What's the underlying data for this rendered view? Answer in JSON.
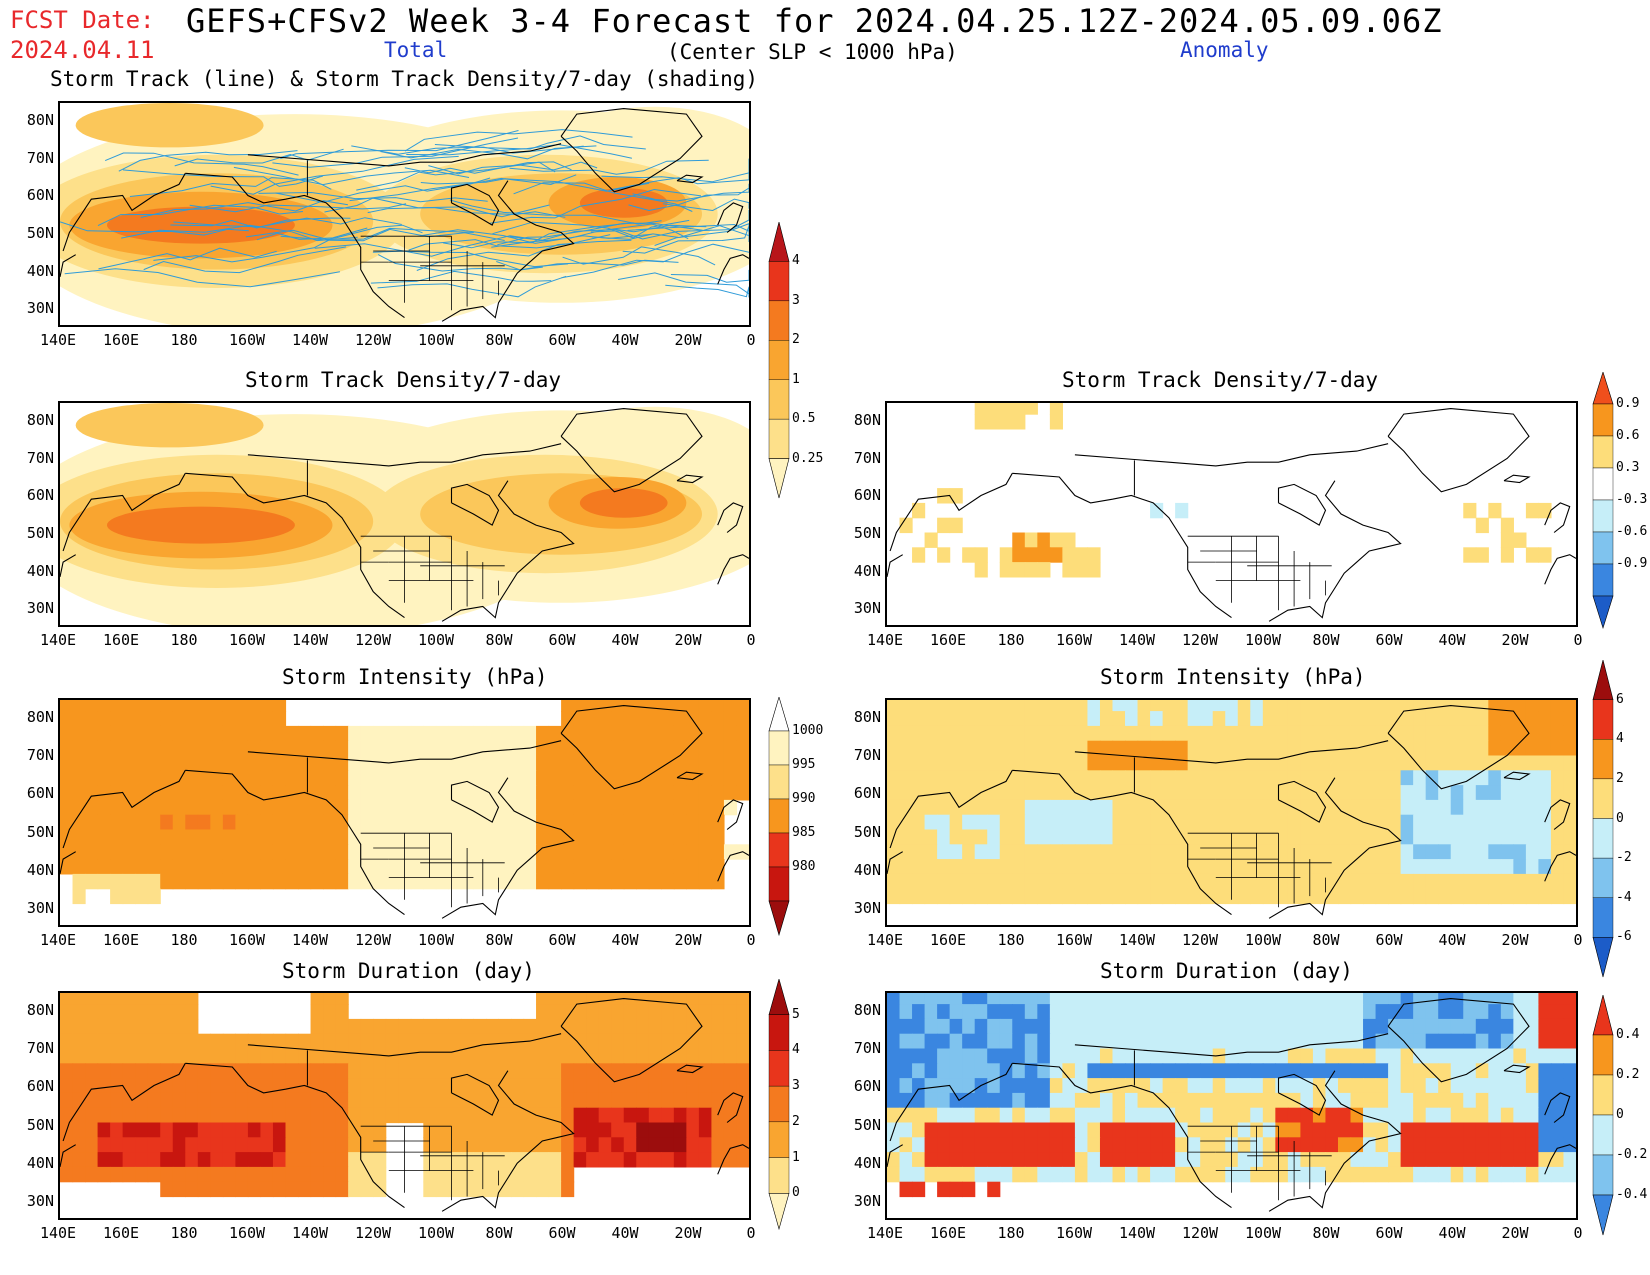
{
  "header": {
    "fcst_label": "FCST Date:",
    "fcst_date": "2024.04.11",
    "title": "GEFS+CFSv2 Week 3-4 Forecast for 2024.04.25.12Z-2024.05.09.06Z",
    "subtitle": "(Center SLP < 1000 hPa)",
    "col_total": "Total",
    "col_anomaly": "Anomaly"
  },
  "axes": {
    "lat_labels": [
      "80N",
      "70N",
      "60N",
      "50N",
      "40N",
      "30N"
    ],
    "lon_labels": [
      "140E",
      "160E",
      "180",
      "160W",
      "140W",
      "120W",
      "100W",
      "80W",
      "60W",
      "40W",
      "20W",
      "0"
    ]
  },
  "panels": [
    {
      "id": "p1",
      "title": "Storm Track (line) & Storm Track Density/7-day (shading)",
      "kind": "tracks"
    },
    {
      "id": "p2",
      "title": "Storm Track Density/7-day",
      "kind": "density_total"
    },
    {
      "id": "p3",
      "title": "Storm Track Density/7-day",
      "kind": "density_anom"
    },
    {
      "id": "p4",
      "title": "Storm Intensity (hPa)",
      "kind": "intensity_total"
    },
    {
      "id": "p5",
      "title": "Storm Intensity (hPa)",
      "kind": "intensity_anom"
    },
    {
      "id": "p6",
      "title": "Storm Duration (day)",
      "kind": "duration_total"
    },
    {
      "id": "p7",
      "title": "Storm Duration (day)",
      "kind": "duration_anom"
    }
  ],
  "colorbars": [
    {
      "id": "cb-density-total",
      "labels": [
        "4",
        "3",
        "2",
        "1",
        "0.5",
        "0.25"
      ],
      "colors": [
        "#b8151a",
        "#e8351c",
        "#f47a1f",
        "#f9a530",
        "#fbc75a",
        "#fde08a",
        "#fff3c0"
      ]
    },
    {
      "id": "cb-density-anom",
      "labels": [
        "0.9",
        "0.6",
        "0.3",
        "-0.3",
        "-0.6",
        "-0.9"
      ],
      "colors": [
        "#f04f1c",
        "#f7961e",
        "#fddd7a",
        "#ffffff",
        "#c6eef8",
        "#7fc3ee",
        "#3a86e0",
        "#1c5cc8"
      ]
    },
    {
      "id": "cb-intensity-total",
      "labels": [
        "1000",
        "995",
        "990",
        "985",
        "980"
      ],
      "colors": [
        "#ffffff",
        "#fff3c0",
        "#fde08a",
        "#f7961e",
        "#e8351c",
        "#c8160f",
        "#9c0d0d"
      ]
    },
    {
      "id": "cb-intensity-anom",
      "labels": [
        "6",
        "4",
        "2",
        "0",
        "-2",
        "-4",
        "-6"
      ],
      "colors": [
        "#9c0d0d",
        "#e8351c",
        "#f7961e",
        "#fddd7a",
        "#c6eef8",
        "#7fc3ee",
        "#3a86e0",
        "#1c5cc8"
      ]
    },
    {
      "id": "cb-duration-total",
      "labels": [
        "5",
        "4",
        "3",
        "2",
        "1",
        "0"
      ],
      "colors": [
        "#9c0d0d",
        "#c8160f",
        "#e8351c",
        "#f47a1f",
        "#f9a530",
        "#fde08a",
        "#fff3c0"
      ]
    },
    {
      "id": "cb-duration-anom",
      "labels": [
        "0.4",
        "0.2",
        "0",
        "-0.2",
        "-0.4"
      ],
      "colors": [
        "#e8351c",
        "#f7961e",
        "#fddd7a",
        "#c6eef8",
        "#7fc3ee",
        "#3a86e0"
      ]
    }
  ]
}
